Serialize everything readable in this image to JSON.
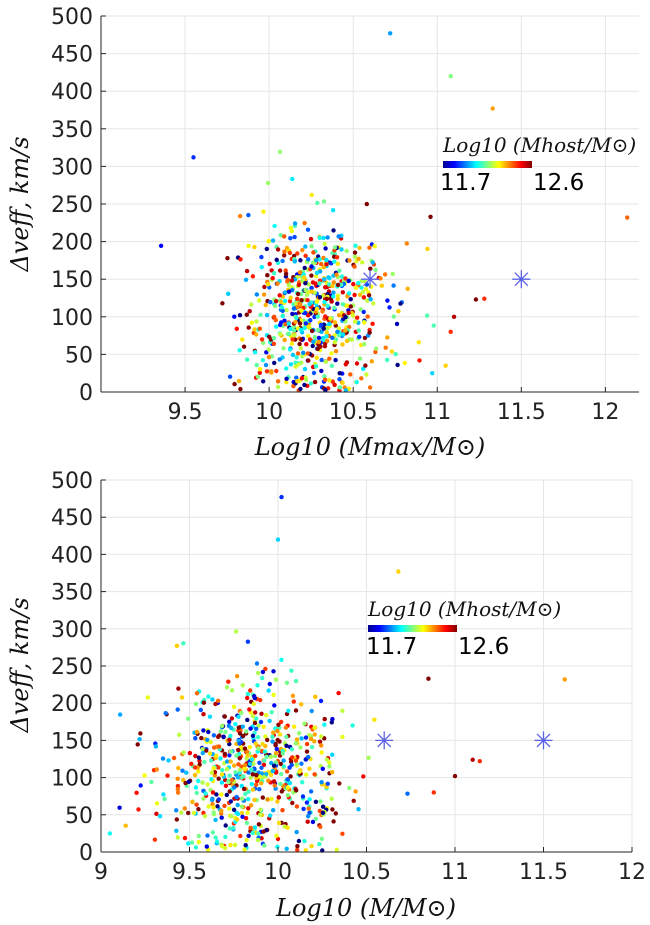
{
  "chart_data": [
    {
      "type": "scatter",
      "xlabel": "Log10 (Mmax/M⊙)",
      "ylabel": "Δveff, km/s",
      "xlim": [
        9.0,
        12.2
      ],
      "ylim": [
        0,
        500
      ],
      "xticks": [
        "9.5",
        "10",
        "10.5",
        "11",
        "11.5",
        "12"
      ],
      "yticks": [
        "0",
        "50",
        "100",
        "150",
        "200",
        "250",
        "300",
        "350",
        "400",
        "450",
        "500"
      ],
      "grid": true,
      "colorbar": {
        "label": "Log10 (Mhost/M⊙)",
        "min": "11.7",
        "max": "12.6",
        "colormap": "jet",
        "placement": "upper-right"
      },
      "cloud": {
        "x_center": 10.28,
        "x_spread": 0.22,
        "y_center": 110,
        "y_spread": 60,
        "n_points": 720
      },
      "outliers": [
        {
          "x": 10.72,
          "y": 477,
          "c": 11.95
        },
        {
          "x": 11.08,
          "y": 420,
          "c": 12.15
        },
        {
          "x": 11.33,
          "y": 377,
          "c": 12.35
        },
        {
          "x": 9.55,
          "y": 312,
          "c": 11.85
        },
        {
          "x": 12.13,
          "y": 232,
          "c": 12.4
        },
        {
          "x": 10.96,
          "y": 233,
          "c": 12.6
        },
        {
          "x": 11.23,
          "y": 123,
          "c": 12.6
        },
        {
          "x": 11.28,
          "y": 124,
          "c": 12.45
        },
        {
          "x": 11.1,
          "y": 100,
          "c": 12.55
        },
        {
          "x": 11.08,
          "y": 80,
          "c": 12.45
        },
        {
          "x": 10.97,
          "y": 25,
          "c": 12.0
        },
        {
          "x": 11.05,
          "y": 35,
          "c": 12.3
        }
      ],
      "markers": [
        {
          "x": 10.6,
          "y": 150,
          "color": "#5b62e8"
        },
        {
          "x": 11.5,
          "y": 150,
          "color": "#5b62e8"
        }
      ]
    },
    {
      "type": "scatter",
      "xlabel": "Log10 (M/M⊙)",
      "ylabel": "Δveff, km/s",
      "xlim": [
        9.0,
        12.0
      ],
      "ylim": [
        0,
        500
      ],
      "xticks": [
        "9",
        "9.5",
        "10",
        "10.5",
        "11",
        "11.5",
        "12"
      ],
      "yticks": [
        "0",
        "50",
        "100",
        "150",
        "200",
        "250",
        "300",
        "350",
        "400",
        "450",
        "500"
      ],
      "grid": true,
      "colorbar": {
        "label": "Log10 (Mhost/M⊙)",
        "min": "11.7",
        "max": "12.6",
        "colormap": "jet",
        "placement": "upper-center"
      },
      "cloud": {
        "x_center": 9.85,
        "x_spread": 0.25,
        "y_center": 110,
        "y_spread": 60,
        "n_points": 720
      },
      "outliers": [
        {
          "x": 10.02,
          "y": 477,
          "c": 11.85
        },
        {
          "x": 10.0,
          "y": 420,
          "c": 12.0
        },
        {
          "x": 10.68,
          "y": 377,
          "c": 12.3
        },
        {
          "x": 10.85,
          "y": 233,
          "c": 12.6
        },
        {
          "x": 11.62,
          "y": 232,
          "c": 12.35
        },
        {
          "x": 11.1,
          "y": 124,
          "c": 12.55
        },
        {
          "x": 11.14,
          "y": 122,
          "c": 12.45
        },
        {
          "x": 11.0,
          "y": 102,
          "c": 12.6
        },
        {
          "x": 10.88,
          "y": 80,
          "c": 12.45
        },
        {
          "x": 9.05,
          "y": 25,
          "c": 12.05
        },
        {
          "x": 10.25,
          "y": 2,
          "c": 11.7
        }
      ],
      "markers": [
        {
          "x": 10.6,
          "y": 150,
          "color": "#5b62e8"
        },
        {
          "x": 11.5,
          "y": 150,
          "color": "#5b62e8"
        }
      ]
    }
  ]
}
